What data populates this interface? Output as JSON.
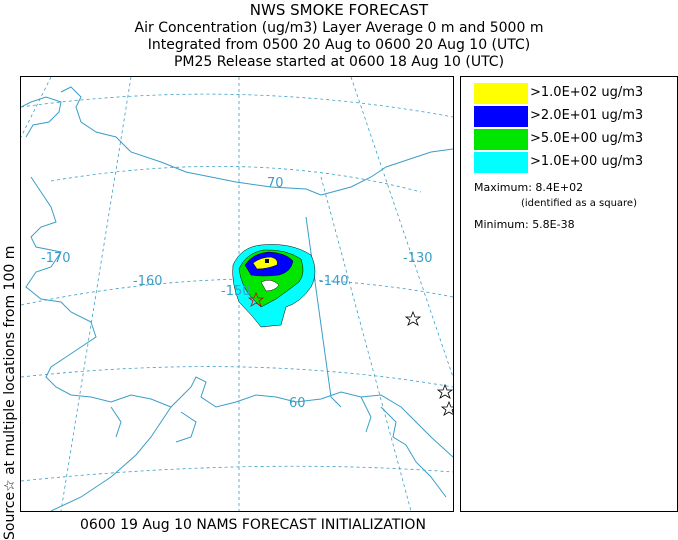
{
  "title": {
    "line1": "NWS SMOKE FORECAST",
    "line2": "Air Concentration (ug/m3) Layer Average     0 m and  5000 m",
    "line3": "Integrated from 0500 20 Aug to 0600 20 Aug 10 (UTC)",
    "line4": "PM25 Release started at 0600 18 Aug 10 (UTC)"
  },
  "side_label": "Source☆   at multiple locations   from   100 m",
  "bottom_caption": "0600 19 Aug 10 NAMS FORECAST INITIALIZATION",
  "legend": {
    "entries": [
      {
        "label": ">1.0E+02 ug/m3",
        "color": "#ffff00"
      },
      {
        "label": ">2.0E+01 ug/m3",
        "color": "#0000ff"
      },
      {
        "label": ">5.0E+00 ug/m3",
        "color": "#00e600"
      },
      {
        "label": ">1.0E+00 ug/m3",
        "color": "#00ffff"
      }
    ],
    "maximum_label": "Maximum:",
    "maximum_value": "8.4E+02",
    "maximum_note": "(identified as a square)",
    "minimum_label": "Minimum:",
    "minimum_value": "5.8E-38"
  },
  "map": {
    "longitude_labels": [
      "-170",
      "-160",
      "-150",
      "-140",
      "-130"
    ],
    "latitude_labels": [
      "70",
      "60"
    ],
    "colors": {
      "coast": "#3a9ec8",
      "grid": "#3a9ec8"
    }
  }
}
